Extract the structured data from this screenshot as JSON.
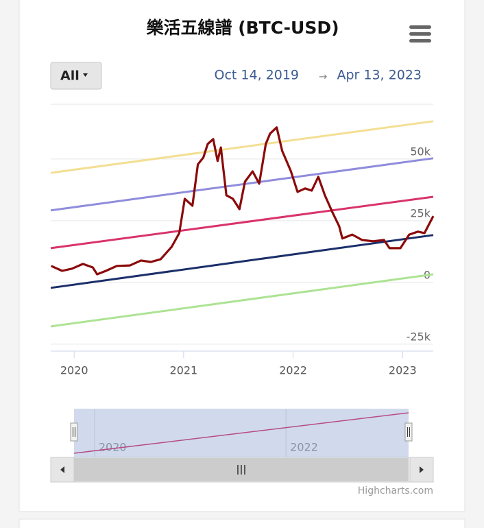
{
  "chart_data": {
    "type": "line",
    "title": "樂活五線譜 (BTC-USD)",
    "range_button": "All",
    "range_start": "Oct 14, 2019",
    "range_arrow": "→",
    "range_end": "Apr 13, 2023",
    "xlim": [
      2019.786,
      2023.28
    ],
    "xticks": [
      2020,
      2021,
      2022,
      2023
    ],
    "ylim": [
      -27800,
      72200
    ],
    "yticks": [
      {
        "value": -25000,
        "label": "-25k"
      },
      0,
      {
        "value": 25000,
        "label": "25k"
      },
      {
        "value": 50000,
        "label": "50k"
      }
    ],
    "grid": true,
    "series": [
      {
        "color": "#f3df93",
        "x": [
          2019.786,
          2023.28
        ],
        "values": [
          44400,
          65300
        ]
      },
      {
        "color": "#8f8cdc",
        "x": [
          2019.786,
          2023.28
        ],
        "values": [
          29200,
          50300
        ]
      },
      {
        "color": "#d9336b",
        "x": [
          2019.786,
          2023.28
        ],
        "values": [
          13900,
          34700
        ]
      },
      {
        "color": "#1b2f6a",
        "x": [
          2019.786,
          2023.28
        ],
        "values": [
          -2200,
          19200
        ]
      },
      {
        "color": "#ade394",
        "x": [
          2019.786,
          2023.28
        ],
        "values": [
          -17800,
          3300
        ]
      },
      {
        "color": "#8b0a0a",
        "x": [
          2019.79,
          2019.89,
          2019.98,
          2020.08,
          2020.17,
          2020.21,
          2020.29,
          2020.39,
          2020.51,
          2020.61,
          2020.7,
          2020.79,
          2020.89,
          2020.96,
          2021.01,
          2021.08,
          2021.13,
          2021.18,
          2021.22,
          2021.27,
          2021.31,
          2021.34,
          2021.39,
          2021.45,
          2021.51,
          2021.56,
          2021.63,
          2021.69,
          2021.75,
          2021.79,
          2021.85,
          2021.9,
          2021.98,
          2022.04,
          2022.11,
          2022.17,
          2022.23,
          2022.29,
          2022.36,
          2022.42,
          2022.45,
          2022.54,
          2022.63,
          2022.73,
          2022.83,
          2022.88,
          2022.98,
          2023.06,
          2023.14,
          2023.2,
          2023.28
        ],
        "values": [
          6700,
          4700,
          5600,
          7500,
          6100,
          3300,
          4700,
          6700,
          6900,
          8900,
          8300,
          9400,
          14400,
          20000,
          33900,
          31100,
          47800,
          50600,
          56100,
          58100,
          49200,
          54700,
          35300,
          33900,
          29700,
          40800,
          45000,
          40000,
          56100,
          60300,
          62800,
          53300,
          45000,
          36700,
          38100,
          37200,
          42800,
          35300,
          28300,
          22800,
          17800,
          19400,
          17200,
          16700,
          17200,
          13900,
          13900,
          19400,
          20600,
          20000,
          26900
        ]
      }
    ],
    "navigator": {
      "xlim": [
        2019.543,
        2023.538
      ],
      "xticks": [
        2020,
        2022
      ]
    },
    "credits": "Highcharts.com"
  }
}
